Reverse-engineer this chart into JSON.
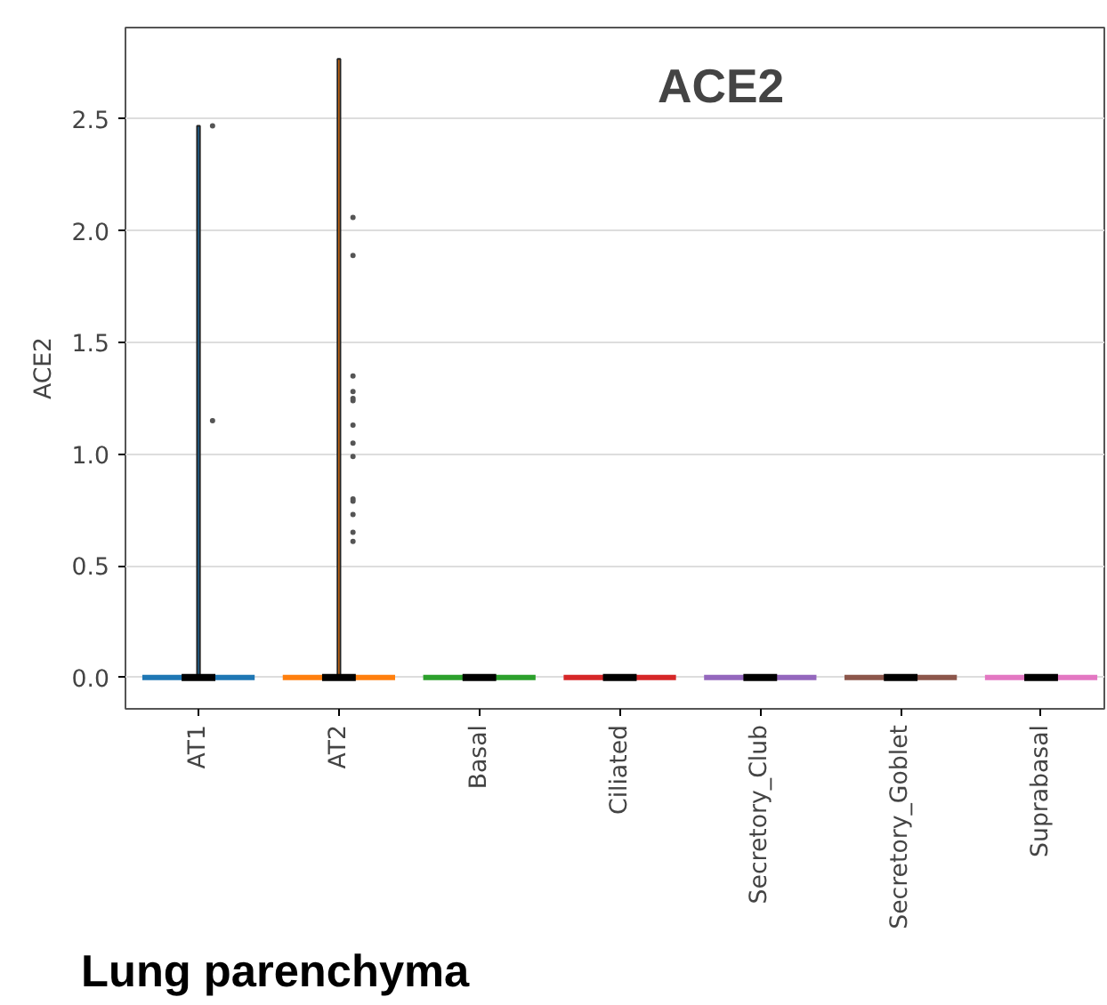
{
  "chart_data": {
    "type": "box",
    "title": "ACE2",
    "ylabel": "ACE2",
    "annotations": [
      "Lung parenchyma"
    ],
    "categories": [
      "AT1",
      "AT2",
      "Basal",
      "Ciliated",
      "Secretory_Club",
      "Secretory_Goblet",
      "Suprabasal"
    ],
    "colors": [
      "#1f77b4",
      "#ff7f0e",
      "#2ca02c",
      "#d62728",
      "#9467bd",
      "#8c564b",
      "#e377c2"
    ],
    "boxes": [
      {
        "low": 0,
        "q1": 0,
        "median": 0,
        "q3": 0,
        "high": 2.47,
        "outliers": [
          2.47,
          1.15
        ]
      },
      {
        "low": 0,
        "q1": 0,
        "median": 0,
        "q3": 0,
        "high": 2.77,
        "outliers": [
          2.06,
          1.89,
          1.35,
          1.28,
          1.25,
          1.24,
          1.13,
          1.05,
          0.99,
          0.8,
          0.79,
          0.73,
          0.65,
          0.61
        ]
      },
      {
        "low": 0,
        "q1": 0,
        "median": 0,
        "q3": 0,
        "high": 0
      },
      {
        "low": 0,
        "q1": 0,
        "median": 0,
        "q3": 0,
        "high": 0
      },
      {
        "low": 0,
        "q1": 0,
        "median": 0,
        "q3": 0,
        "high": 0
      },
      {
        "low": 0,
        "q1": 0,
        "median": 0,
        "q3": 0,
        "high": 0
      },
      {
        "low": 0,
        "q1": 0,
        "median": 0,
        "q3": 0,
        "high": 0
      }
    ],
    "ylim": [
      -0.14,
      2.91
    ],
    "yticks": [
      {
        "value": 0,
        "label": "0.0"
      },
      {
        "value": 0.5,
        "label": "0.5"
      },
      {
        "value": 1,
        "label": "1.0"
      },
      {
        "value": 1.5,
        "label": "1.5"
      },
      {
        "value": 2,
        "label": "2.0"
      },
      {
        "value": 2.5,
        "label": "2.5"
      }
    ],
    "grid": "y"
  }
}
